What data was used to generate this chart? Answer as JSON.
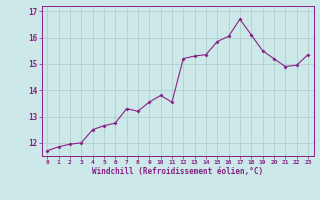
{
  "x": [
    0,
    1,
    2,
    3,
    4,
    5,
    6,
    7,
    8,
    9,
    10,
    11,
    12,
    13,
    14,
    15,
    16,
    17,
    18,
    19,
    20,
    21,
    22,
    23
  ],
  "y": [
    11.7,
    11.85,
    11.95,
    12.0,
    12.5,
    12.65,
    12.75,
    13.3,
    13.2,
    13.55,
    13.8,
    13.55,
    15.2,
    15.3,
    15.35,
    15.85,
    16.05,
    16.7,
    16.1,
    15.5,
    15.2,
    14.9,
    14.95,
    15.35
  ],
  "line_color": "#882288",
  "marker": "D",
  "marker_size": 2.0,
  "background_color": "#cce8e8",
  "grid_color": "#aacccc",
  "xlabel": "Windchill (Refroidissement éolien,°C)",
  "xlim": [
    -0.5,
    23.5
  ],
  "ylim": [
    11.5,
    17.2
  ],
  "yticks": [
    12,
    13,
    14,
    15,
    16,
    17
  ],
  "xticks": [
    0,
    1,
    2,
    3,
    4,
    5,
    6,
    7,
    8,
    9,
    10,
    11,
    12,
    13,
    14,
    15,
    16,
    17,
    18,
    19,
    20,
    21,
    22,
    23
  ],
  "xtick_labels": [
    "0",
    "1",
    "2",
    "3",
    "4",
    "5",
    "6",
    "7",
    "8",
    "9",
    "10",
    "11",
    "12",
    "13",
    "14",
    "15",
    "16",
    "17",
    "18",
    "19",
    "20",
    "21",
    "22",
    "23"
  ],
  "tick_color": "#882288",
  "label_color": "#882288",
  "spine_color": "#882288",
  "tick_fontsize": 4.5,
  "xlabel_fontsize": 5.5,
  "ytick_fontsize": 5.5
}
